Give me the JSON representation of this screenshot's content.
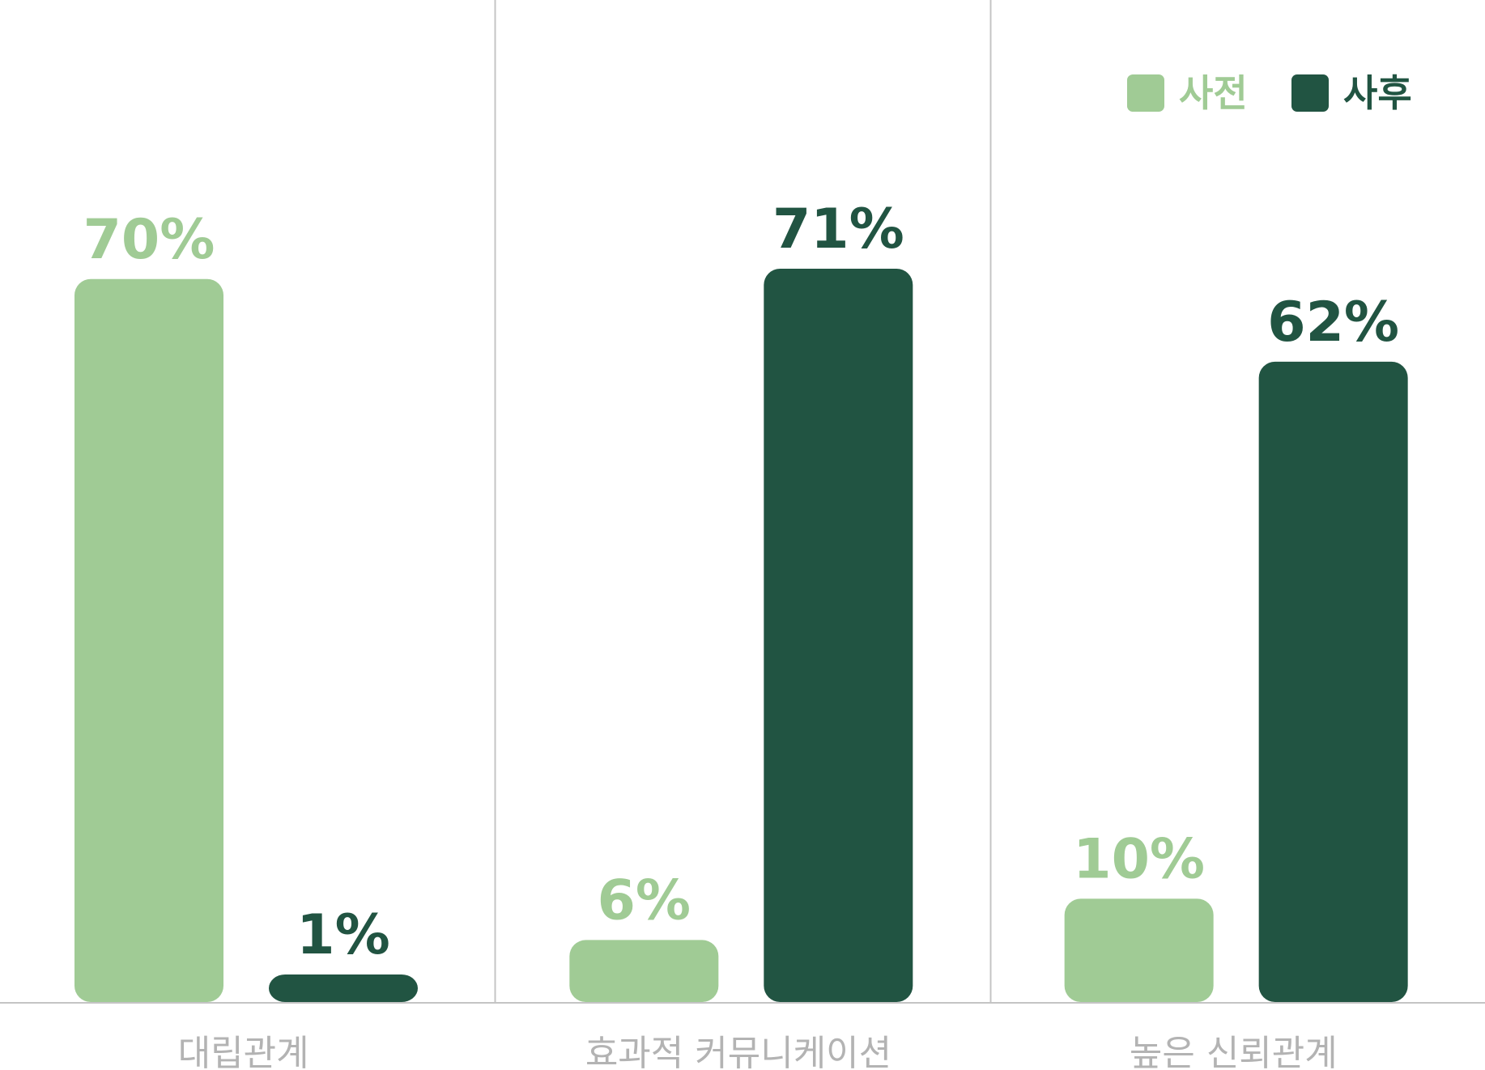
{
  "chart_data": {
    "type": "bar",
    "categories": [
      "대립관계",
      "효과적 커뮤니케이션",
      "높은 신뢰관계"
    ],
    "series": [
      {
        "name": "사전",
        "values": [
          70,
          6,
          10
        ],
        "labels": [
          "70%",
          "6%",
          "10%"
        ],
        "color": "#a0cb95"
      },
      {
        "name": "사후",
        "values": [
          1,
          71,
          62
        ],
        "labels": [
          "1%",
          "71%",
          "62%"
        ],
        "color": "#215442"
      }
    ],
    "unit": "%",
    "ylim": [
      0,
      71
    ],
    "grid": false,
    "legend_position": "top-right",
    "axis_color": "#c4c4c4",
    "category_label_color": "#b3b3b3"
  }
}
